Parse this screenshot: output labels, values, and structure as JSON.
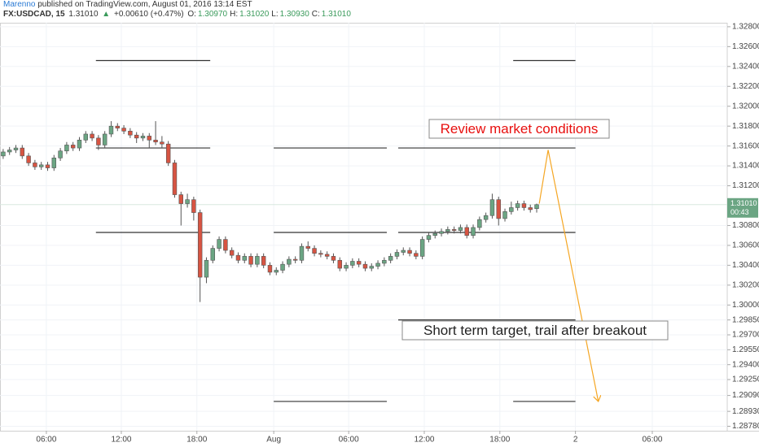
{
  "chart_data": {
    "type": "candlestick",
    "author": "Marenno",
    "published": " published on TradingView.com, August 01, 2016 13:14 EST",
    "header": {
      "symbol": "FX:USDCAD, 15",
      "last": "1.31010",
      "arrow": "▲",
      "change": "+0.00610 (+0.47%)",
      "ohlc": [
        {
          "label": "O:",
          "value": "1.30970"
        },
        {
          "label": "H:",
          "value": "1.31020"
        },
        {
          "label": "L:",
          "value": "1.30930"
        },
        {
          "label": "C:",
          "value": "1.31010"
        }
      ]
    },
    "up_color": "#6ba583",
    "down_color": "#d75442",
    "grid": true,
    "xlim": [
      -0.5,
      114
    ],
    "xticks": [
      {
        "value": 6.8,
        "label": "06:00"
      },
      {
        "value": 18.6,
        "label": "12:00"
      },
      {
        "value": 30.5,
        "label": "18:00"
      },
      {
        "value": 42.6,
        "label": "Aug"
      },
      {
        "value": 54.4,
        "label": "06:00"
      },
      {
        "value": 66.3,
        "label": "12:00"
      },
      {
        "value": 78.2,
        "label": "18:00"
      },
      {
        "value": 90.1,
        "label": "2"
      },
      {
        "value": 102.2,
        "label": "06:00"
      }
    ],
    "ylim": [
      1.28735,
      1.3284
    ],
    "yticks": [
      {
        "value": 1.328,
        "label": "1.32800"
      },
      {
        "value": 1.326,
        "label": "1.32600"
      },
      {
        "value": 1.324,
        "label": "1.32400"
      },
      {
        "value": 1.322,
        "label": "1.32200"
      },
      {
        "value": 1.32,
        "label": "1.32000"
      },
      {
        "value": 1.318,
        "label": "1.31800"
      },
      {
        "value": 1.316,
        "label": "1.31600"
      },
      {
        "value": 1.314,
        "label": "1.31400"
      },
      {
        "value": 1.312,
        "label": "1.31200"
      },
      {
        "value": 1.308,
        "label": "1.30800"
      },
      {
        "value": 1.306,
        "label": "1.30600"
      },
      {
        "value": 1.304,
        "label": "1.30400"
      },
      {
        "value": 1.302,
        "label": "1.30200"
      },
      {
        "value": 1.3,
        "label": "1.30000"
      },
      {
        "value": 1.2985,
        "label": "1.29850"
      },
      {
        "value": 1.297,
        "label": "1.29700"
      },
      {
        "value": 1.2955,
        "label": "1.29550"
      },
      {
        "value": 1.294,
        "label": "1.29400"
      },
      {
        "value": 1.2925,
        "label": "1.29250"
      },
      {
        "value": 1.2909,
        "label": "1.29090"
      },
      {
        "value": 1.2893,
        "label": "1.28930"
      },
      {
        "value": 1.2878,
        "label": "1.28780"
      }
    ],
    "last_price": {
      "value": 1.3101,
      "label": "1.31010",
      "countdown": "00:43",
      "color": "#6ba583"
    },
    "candles": {
      "open": [
        1.315,
        1.3154,
        1.3156,
        1.3158,
        1.315,
        1.3143,
        1.3139,
        1.3141,
        1.3138,
        1.3148,
        1.3155,
        1.3161,
        1.3158,
        1.3166,
        1.3172,
        1.3168,
        1.3161,
        1.3172,
        1.318,
        1.3178,
        1.3175,
        1.3171,
        1.3168,
        1.317,
        1.3166,
        1.3164,
        1.3162,
        1.3143,
        1.3111,
        1.3102,
        1.3106,
        1.3093,
        1.3028,
        1.3045,
        1.3057,
        1.3066,
        1.3055,
        1.305,
        1.3045,
        1.3049,
        1.3041,
        1.3049,
        1.304,
        1.3033,
        1.3035,
        1.3041,
        1.3046,
        1.3045,
        1.3059,
        1.3057,
        1.3052,
        1.3051,
        1.3049,
        1.3045,
        1.3037,
        1.304,
        1.3044,
        1.3041,
        1.3037,
        1.3039,
        1.3042,
        1.3045,
        1.3049,
        1.3053,
        1.3055,
        1.3052,
        1.3049,
        1.3066,
        1.307,
        1.3072,
        1.3074,
        1.3076,
        1.3075,
        1.3078,
        1.307,
        1.3078,
        1.3086,
        1.309,
        1.3106,
        1.3087,
        1.3094,
        1.3098,
        1.3102,
        1.3098,
        1.3097
      ],
      "high": [
        1.3157,
        1.3159,
        1.3161,
        1.3161,
        1.3153,
        1.3146,
        1.3144,
        1.3144,
        1.3151,
        1.3158,
        1.3164,
        1.3164,
        1.3169,
        1.3175,
        1.3175,
        1.3171,
        1.3175,
        1.3185,
        1.3183,
        1.3181,
        1.3178,
        1.3174,
        1.3173,
        1.3173,
        1.3185,
        1.317,
        1.3165,
        1.3146,
        1.3114,
        1.3112,
        1.3109,
        1.3096,
        1.3048,
        1.306,
        1.3069,
        1.3069,
        1.3058,
        1.3053,
        1.3052,
        1.3052,
        1.3052,
        1.3052,
        1.3043,
        1.3038,
        1.3044,
        1.3049,
        1.3049,
        1.3062,
        1.3064,
        1.306,
        1.3055,
        1.3054,
        1.3052,
        1.3048,
        1.3043,
        1.3047,
        1.3047,
        1.3044,
        1.3042,
        1.3045,
        1.3048,
        1.3052,
        1.3056,
        1.3058,
        1.3058,
        1.3055,
        1.3069,
        1.3073,
        1.3075,
        1.3077,
        1.3079,
        1.3079,
        1.3081,
        1.3081,
        1.3081,
        1.3089,
        1.3093,
        1.3112,
        1.3109,
        1.3097,
        1.3104,
        1.3105,
        1.3105,
        1.3101,
        1.3102
      ],
      "low": [
        1.3147,
        1.3151,
        1.3153,
        1.3147,
        1.314,
        1.3136,
        1.3136,
        1.3135,
        1.3135,
        1.3145,
        1.3152,
        1.3155,
        1.3155,
        1.3163,
        1.3165,
        1.3156,
        1.3158,
        1.3169,
        1.3175,
        1.3172,
        1.3168,
        1.3163,
        1.3165,
        1.3158,
        1.3161,
        1.3158,
        1.314,
        1.3108,
        1.308,
        1.3098,
        1.3085,
        1.3003,
        1.3022,
        1.3042,
        1.3054,
        1.3052,
        1.3047,
        1.3042,
        1.3042,
        1.3038,
        1.3038,
        1.3037,
        1.303,
        1.303,
        1.3032,
        1.3038,
        1.3042,
        1.3042,
        1.3054,
        1.3049,
        1.3048,
        1.3046,
        1.3042,
        1.3034,
        1.3034,
        1.3037,
        1.3038,
        1.3034,
        1.3034,
        1.3036,
        1.3039,
        1.3042,
        1.3046,
        1.305,
        1.3049,
        1.3046,
        1.3046,
        1.3063,
        1.3067,
        1.3069,
        1.3071,
        1.3072,
        1.3072,
        1.3067,
        1.3067,
        1.3075,
        1.3083,
        1.3087,
        1.308,
        1.3084,
        1.3091,
        1.3095,
        1.3095,
        1.3093,
        1.3093
      ],
      "close": [
        1.3154,
        1.3156,
        1.3158,
        1.315,
        1.3143,
        1.3139,
        1.3141,
        1.3138,
        1.3148,
        1.3155,
        1.3161,
        1.3158,
        1.3166,
        1.3172,
        1.3168,
        1.3161,
        1.3172,
        1.318,
        1.3178,
        1.3175,
        1.3171,
        1.3168,
        1.317,
        1.3166,
        1.3164,
        1.3162,
        1.3143,
        1.3111,
        1.3102,
        1.3106,
        1.3093,
        1.3028,
        1.3045,
        1.3057,
        1.3066,
        1.3055,
        1.305,
        1.3045,
        1.3049,
        1.3041,
        1.3049,
        1.304,
        1.3033,
        1.3035,
        1.3041,
        1.3046,
        1.3045,
        1.3059,
        1.3057,
        1.3052,
        1.3051,
        1.3049,
        1.3045,
        1.3037,
        1.304,
        1.3044,
        1.3041,
        1.3037,
        1.3039,
        1.3042,
        1.3045,
        1.3049,
        1.3053,
        1.3055,
        1.3052,
        1.3049,
        1.3066,
        1.307,
        1.3072,
        1.3074,
        1.3076,
        1.3075,
        1.3078,
        1.307,
        1.3078,
        1.3086,
        1.309,
        1.3106,
        1.3087,
        1.3094,
        1.3098,
        1.3102,
        1.3098,
        1.3096,
        1.3101
      ]
    },
    "levels": [
      {
        "price": 1.3246,
        "segments": [
          [
            14.6,
            32.6
          ],
          [
            80.3,
            90.1
          ]
        ]
      },
      {
        "price": 1.3158,
        "segments": [
          [
            14.6,
            32.6
          ],
          [
            42.6,
            60.4
          ],
          [
            62.2,
            90.1
          ]
        ]
      },
      {
        "price": 1.3073,
        "segments": [
          [
            14.6,
            32.6
          ],
          [
            42.6,
            60.4
          ],
          [
            62.2,
            90.1
          ]
        ]
      },
      {
        "price": 1.2985,
        "segments": [
          [
            62.2,
            90.1
          ]
        ]
      },
      {
        "price": 1.2903,
        "segments": [
          [
            42.6,
            60.4
          ],
          [
            80.3,
            90.1
          ]
        ]
      }
    ],
    "projection": {
      "color": "#f5a623",
      "x": [
        84.4,
        85.8,
        93.7
      ],
      "y": [
        1.3102,
        1.3156,
        1.2903
      ]
    },
    "annotations": [
      {
        "text": "Review market conditions",
        "color": "#e8100f"
      },
      {
        "text": "Short term target, trail after breakout",
        "color": "#222222"
      }
    ]
  }
}
